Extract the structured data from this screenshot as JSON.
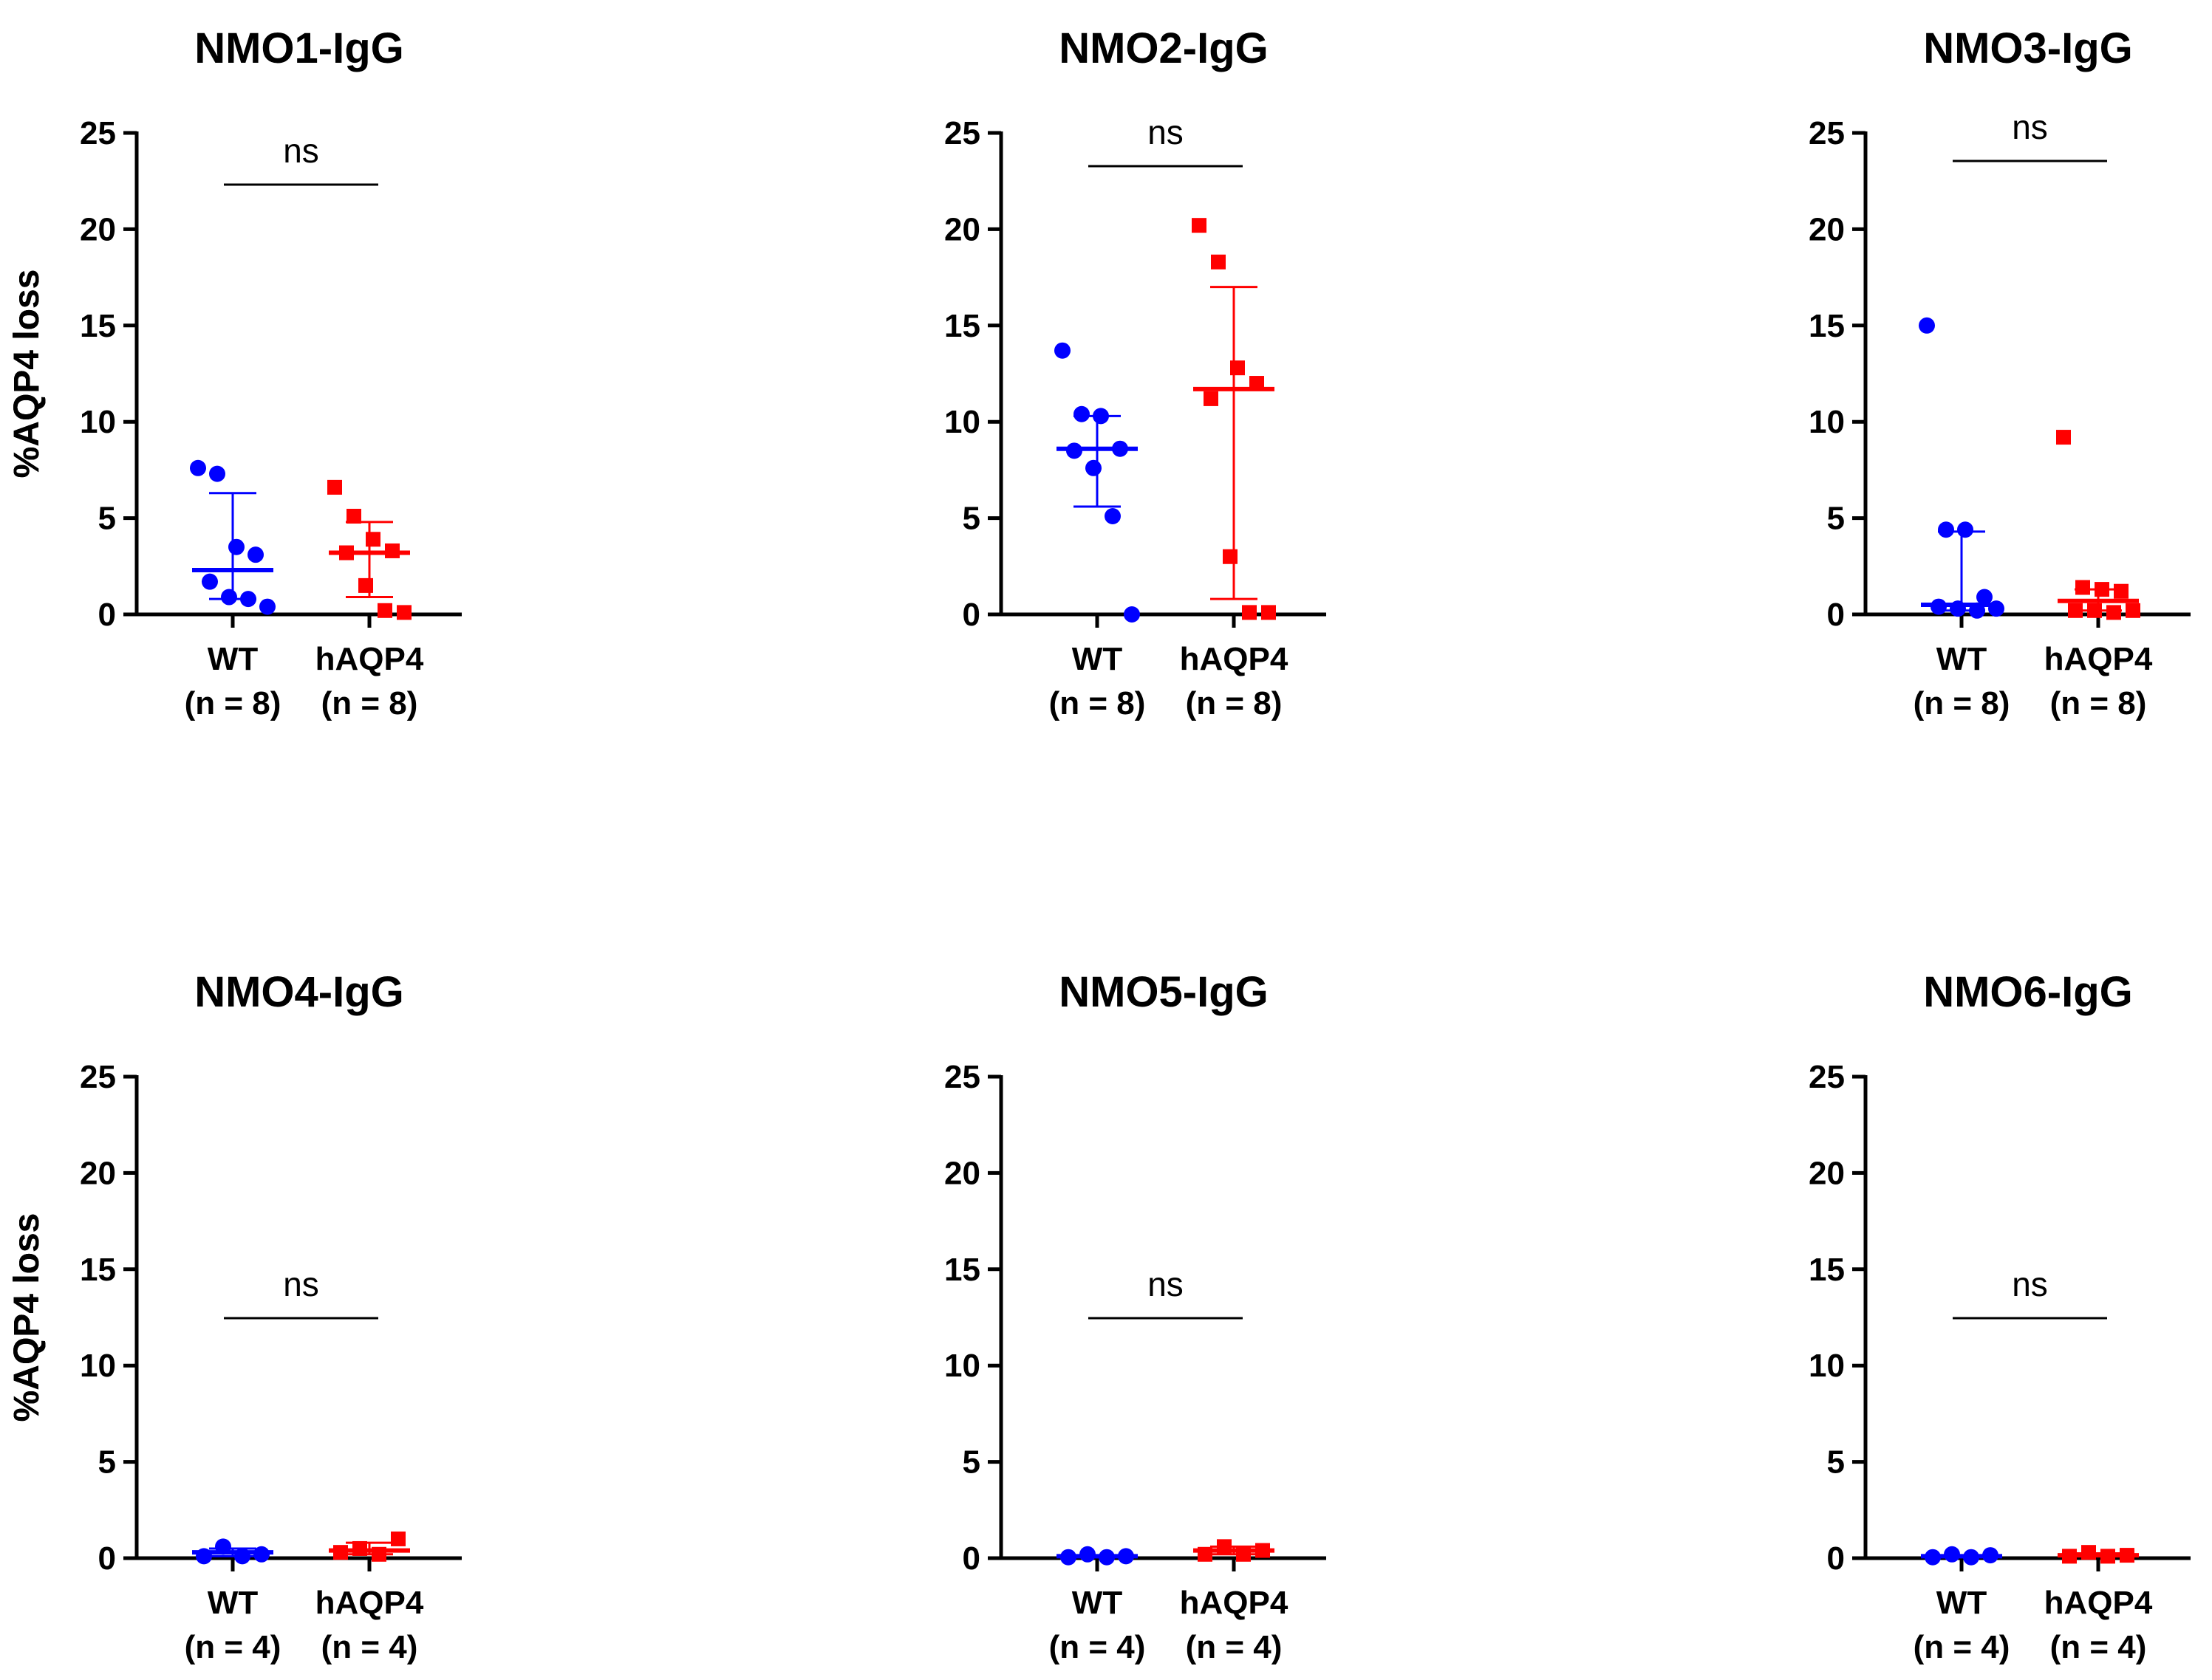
{
  "chart_data": [
    {
      "type": "scatter",
      "title": "NMO1-IgG",
      "ylabel": "%AQP4 loss",
      "ylim": [
        0,
        25
      ],
      "yticks": [
        "0",
        "5",
        "10",
        "15",
        "20",
        "25"
      ],
      "categories": [
        "WT",
        "hAQP4"
      ],
      "n_labels": [
        "(n = 8)",
        "(n = 8)"
      ],
      "significance": "ns",
      "series": [
        {
          "name": "WT",
          "color": "#0000ff",
          "marker": "circle",
          "values": [
            7.6,
            7.3,
            3.5,
            3.1,
            1.7,
            0.9,
            0.8,
            0.4
          ],
          "center": 2.3,
          "range": [
            0.8,
            6.3
          ]
        },
        {
          "name": "hAQP4",
          "color": "#ff0000",
          "marker": "square",
          "values": [
            6.6,
            5.1,
            3.9,
            3.3,
            3.2,
            1.5,
            0.2,
            0.1
          ],
          "center": 3.2,
          "range": [
            0.9,
            4.8
          ]
        }
      ]
    },
    {
      "type": "scatter",
      "title": "NMO2-IgG",
      "ylabel": "%AQP4 loss",
      "ylim": [
        0,
        25
      ],
      "yticks": [
        "0",
        "5",
        "10",
        "15",
        "20",
        "25"
      ],
      "categories": [
        "WT",
        "hAQP4"
      ],
      "n_labels": [
        "(n = 8)",
        "(n = 8)"
      ],
      "significance": "ns",
      "series": [
        {
          "name": "WT",
          "color": "#0000ff",
          "marker": "circle",
          "values": [
            13.7,
            10.4,
            10.3,
            8.6,
            8.5,
            7.6,
            5.1,
            0.0
          ],
          "center": 8.6,
          "range": [
            5.6,
            10.3
          ]
        },
        {
          "name": "hAQP4",
          "color": "#ff0000",
          "marker": "square",
          "values": [
            20.2,
            18.3,
            12.8,
            12.0,
            11.2,
            3.0,
            0.1,
            0.1
          ],
          "center": 11.7,
          "range": [
            0.8,
            17.0
          ]
        }
      ]
    },
    {
      "type": "scatter",
      "title": "NMO3-IgG",
      "ylabel": "%AQP4 loss",
      "ylim": [
        0,
        25
      ],
      "yticks": [
        "0",
        "5",
        "10",
        "15",
        "20",
        "25"
      ],
      "categories": [
        "WT",
        "hAQP4"
      ],
      "n_labels": [
        "(n = 8)",
        "(n = 8)"
      ],
      "significance": "ns",
      "series": [
        {
          "name": "WT",
          "color": "#0000ff",
          "marker": "circle",
          "values": [
            15.0,
            4.4,
            4.4,
            0.9,
            0.4,
            0.3,
            0.2,
            0.3
          ],
          "center": 0.5,
          "range": [
            0.2,
            4.3
          ]
        },
        {
          "name": "hAQP4",
          "color": "#ff0000",
          "marker": "square",
          "values": [
            9.2,
            1.4,
            1.3,
            1.2,
            0.2,
            0.2,
            0.1,
            0.2
          ],
          "center": 0.7,
          "range": [
            0.2,
            1.3
          ]
        }
      ]
    },
    {
      "type": "scatter",
      "title": "NMO4-IgG",
      "ylabel": "%AQP4 loss",
      "ylim": [
        0,
        25
      ],
      "yticks": [
        "0",
        "5",
        "10",
        "15",
        "20",
        "25"
      ],
      "categories": [
        "WT",
        "hAQP4"
      ],
      "n_labels": [
        "(n = 4)",
        "(n = 4)"
      ],
      "significance": "ns",
      "series": [
        {
          "name": "WT",
          "color": "#0000ff",
          "marker": "circle",
          "values": [
            0.1,
            0.6,
            0.1,
            0.2
          ],
          "center": 0.3,
          "range": [
            0.1,
            0.5
          ]
        },
        {
          "name": "hAQP4",
          "color": "#ff0000",
          "marker": "square",
          "values": [
            0.3,
            0.5,
            0.2,
            1.0
          ],
          "center": 0.4,
          "range": [
            0.2,
            0.8
          ]
        }
      ]
    },
    {
      "type": "scatter",
      "title": "NMO5-IgG",
      "ylabel": "%AQP4 loss",
      "ylim": [
        0,
        25
      ],
      "yticks": [
        "0",
        "5",
        "10",
        "15",
        "20",
        "25"
      ],
      "categories": [
        "WT",
        "hAQP4"
      ],
      "n_labels": [
        "(n = 4)",
        "(n = 4)"
      ],
      "significance": "ns",
      "series": [
        {
          "name": "WT",
          "color": "#0000ff",
          "marker": "circle",
          "values": [
            0.05,
            0.2,
            0.05,
            0.1
          ],
          "center": 0.1,
          "range": [
            0.05,
            0.15
          ]
        },
        {
          "name": "hAQP4",
          "color": "#ff0000",
          "marker": "square",
          "values": [
            0.2,
            0.6,
            0.2,
            0.4
          ],
          "center": 0.4,
          "range": [
            0.2,
            0.6
          ]
        }
      ]
    },
    {
      "type": "scatter",
      "title": "NMO6-IgG",
      "ylabel": "%AQP4 loss",
      "ylim": [
        0,
        25
      ],
      "yticks": [
        "0",
        "5",
        "10",
        "15",
        "20",
        "25"
      ],
      "categories": [
        "WT",
        "hAQP4"
      ],
      "n_labels": [
        "(n = 4)",
        "(n = 4)"
      ],
      "significance": "ns",
      "series": [
        {
          "name": "WT",
          "color": "#0000ff",
          "marker": "circle",
          "values": [
            0.05,
            0.2,
            0.05,
            0.15
          ],
          "center": 0.1,
          "range": [
            0.05,
            0.15
          ]
        },
        {
          "name": "hAQP4",
          "color": "#ff0000",
          "marker": "square",
          "values": [
            0.1,
            0.3,
            0.1,
            0.15
          ],
          "center": 0.15,
          "range": [
            0.1,
            0.25
          ]
        }
      ]
    }
  ]
}
